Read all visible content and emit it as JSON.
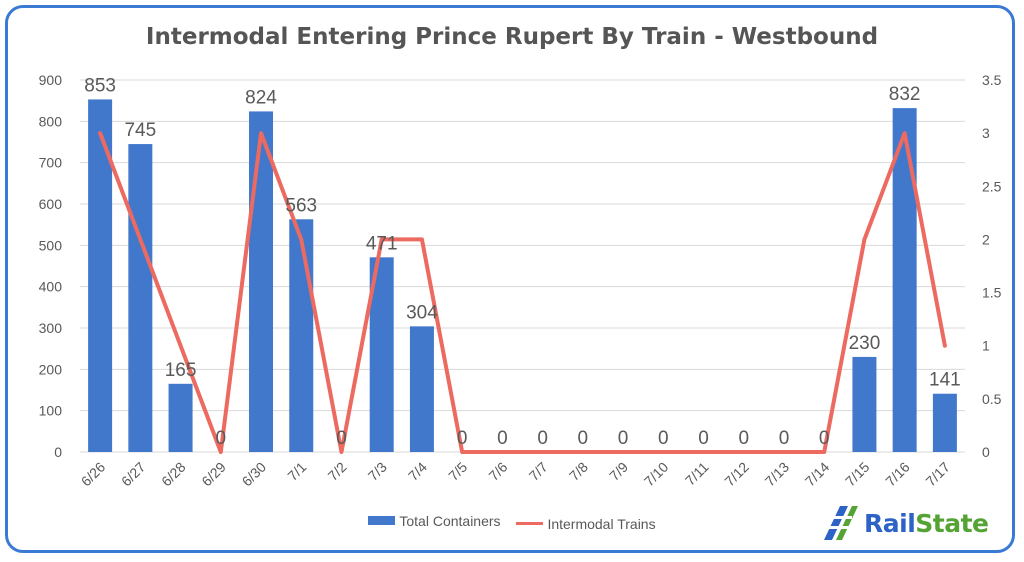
{
  "chart_data": {
    "type": "bar+line",
    "title": "Intermodal Entering Prince Rupert By Train - Westbound",
    "categories": [
      "6/26",
      "6/27",
      "6/28",
      "6/29",
      "6/30",
      "7/1",
      "7/2",
      "7/3",
      "7/4",
      "7/5",
      "7/6",
      "7/7",
      "7/8",
      "7/9",
      "7/10",
      "7/11",
      "7/12",
      "7/13",
      "7/14",
      "7/15",
      "7/16",
      "7/17"
    ],
    "series": [
      {
        "name": "Total Containers",
        "type": "bar",
        "axis": "left",
        "color": "#4178cc",
        "values": [
          853,
          745,
          165,
          0,
          824,
          563,
          0,
          471,
          304,
          0,
          0,
          0,
          0,
          0,
          0,
          0,
          0,
          0,
          0,
          230,
          832,
          141
        ]
      },
      {
        "name": "Intermodal Trains",
        "type": "line",
        "axis": "right",
        "color": "#ec6a60",
        "values": [
          3,
          2,
          1,
          0,
          3,
          2,
          0,
          2,
          2,
          0,
          0,
          0,
          0,
          0,
          0,
          0,
          0,
          0,
          0,
          2,
          3,
          1
        ]
      }
    ],
    "y_left": {
      "min": 0,
      "max": 900,
      "ticks": [
        "0",
        "100",
        "200",
        "300",
        "400",
        "500",
        "600",
        "700",
        "800",
        "900"
      ]
    },
    "y_right": {
      "min": 0,
      "max": 3.5,
      "ticks": [
        "0",
        "0.5",
        "1",
        "1.5",
        "2",
        "2.5",
        "3",
        "3.5"
      ]
    },
    "grid": true,
    "legend": "bottom"
  },
  "logo": {
    "part1": "Rail",
    "part2": "State"
  }
}
